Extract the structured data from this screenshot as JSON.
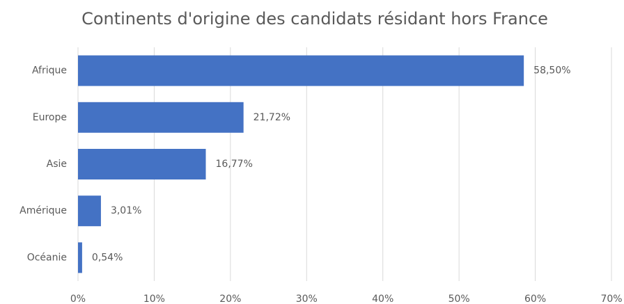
{
  "chart_data": {
    "type": "bar",
    "orientation": "horizontal",
    "title": "Continents d'origine des candidats résidant hors France",
    "categories": [
      "Afrique",
      "Europe",
      "Asie",
      "Amérique",
      "Océanie"
    ],
    "values": [
      58.5,
      21.72,
      16.77,
      3.01,
      0.54
    ],
    "value_labels": [
      "58,50%",
      "21,72%",
      "16,77%",
      "3,01%",
      "0,54%"
    ],
    "color": "#4472c4",
    "xlim": [
      0,
      70
    ],
    "xticks": [
      {
        "value": 0,
        "label": "0%"
      },
      {
        "value": 10,
        "label": "10%"
      },
      {
        "value": 20,
        "label": "20%"
      },
      {
        "value": 30,
        "label": "30%"
      },
      {
        "value": 40,
        "label": "40%"
      },
      {
        "value": 50,
        "label": "50%"
      },
      {
        "value": 60,
        "label": "60%"
      },
      {
        "value": 70,
        "label": "70%"
      }
    ],
    "grid": true
  }
}
